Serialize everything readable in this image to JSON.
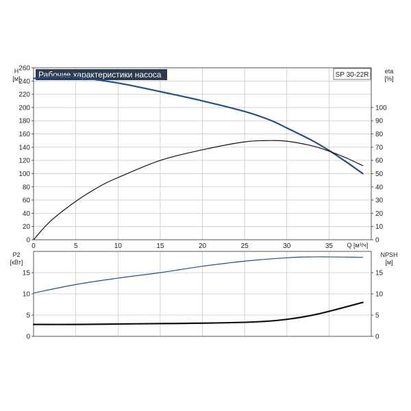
{
  "header": {
    "title": "Рабочие характеристики насоса",
    "model": "SP 30-22R"
  },
  "colors": {
    "head": "#1f4e8c",
    "eta": "#111111",
    "power": "#1f4e8c",
    "npsh": "#111111",
    "title_bg": "#2b3a4f"
  },
  "chart_data": [
    {
      "type": "line",
      "panel": "top",
      "xlabel": "Q [м³/ч]",
      "xlim": [
        0,
        40
      ],
      "xticks": [
        0,
        5,
        10,
        15,
        20,
        25,
        30,
        35
      ],
      "y_left": {
        "label": "H",
        "unit": "[м]",
        "ylim": [
          0,
          260
        ],
        "ticks": [
          0,
          20,
          40,
          60,
          80,
          100,
          120,
          140,
          160,
          180,
          200,
          220,
          240,
          260
        ]
      },
      "y_right": {
        "label": "eta",
        "unit": "[%]",
        "ylim": [
          0,
          130
        ],
        "ticks": [
          0,
          10,
          20,
          30,
          40,
          50,
          60,
          70,
          80,
          90,
          100
        ]
      },
      "grid": true,
      "series": [
        {
          "axis": "left",
          "x": [
            0,
            3,
            5,
            10,
            15,
            20,
            25,
            28,
            30,
            33,
            35,
            37,
            39
          ],
          "y": [
            244,
            247,
            246,
            237,
            224,
            210,
            194,
            181,
            169,
            150,
            135,
            118,
            100
          ]
        },
        {
          "axis": "right",
          "x": [
            0,
            2,
            5,
            8,
            10,
            15,
            20,
            25,
            28,
            30,
            33,
            35,
            37,
            39
          ],
          "y": [
            0,
            14,
            29,
            41,
            47,
            60,
            68,
            74,
            75,
            74.5,
            71,
            67,
            62,
            56
          ]
        }
      ]
    },
    {
      "type": "line",
      "panel": "bottom",
      "xlim": [
        0,
        40
      ],
      "y_left": {
        "label": "P2",
        "unit": "[кВт]",
        "ylim": [
          0,
          20
        ],
        "ticks": [
          0,
          5,
          10,
          15
        ]
      },
      "y_right": {
        "label": "NPSH",
        "unit": "[м]",
        "ylim": [
          0,
          20
        ],
        "ticks": [
          0,
          5,
          10,
          15
        ]
      },
      "grid": true,
      "series": [
        {
          "axis": "left",
          "x": [
            0,
            5,
            10,
            15,
            20,
            25,
            30,
            33,
            35,
            39
          ],
          "y": [
            10.2,
            12.2,
            13.7,
            15.0,
            16.5,
            17.7,
            18.5,
            18.7,
            18.7,
            18.6
          ]
        },
        {
          "axis": "right",
          "x": [
            0,
            5,
            10,
            15,
            20,
            25,
            28,
            30,
            32,
            34,
            36,
            39
          ],
          "y": [
            2.8,
            2.8,
            2.9,
            3.0,
            3.1,
            3.3,
            3.6,
            4.0,
            4.6,
            5.4,
            6.4,
            8.0
          ]
        }
      ]
    }
  ]
}
